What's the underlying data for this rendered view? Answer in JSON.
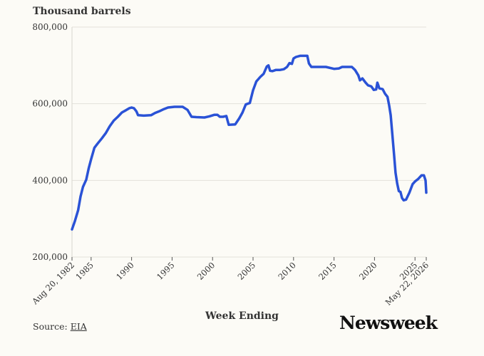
{
  "chart_data": {
    "type": "line",
    "ylabel": "Thousand barrels",
    "xlabel": "Week Ending",
    "xlim": [
      1982.64,
      2026.39
    ],
    "ylim": [
      200000,
      800000
    ],
    "y_ticks": [
      {
        "value": 200000,
        "label": "200,000"
      },
      {
        "value": 400000,
        "label": "400,000"
      },
      {
        "value": 600000,
        "label": "600,000"
      },
      {
        "value": 800000,
        "label": "800,000"
      }
    ],
    "x_ticks": [
      {
        "value": 1982.64,
        "label": "Aug 20, 1982"
      },
      {
        "value": 1985,
        "label": "1985"
      },
      {
        "value": 1990,
        "label": "1990"
      },
      {
        "value": 1995,
        "label": "1995"
      },
      {
        "value": 2000,
        "label": "2000"
      },
      {
        "value": 2005,
        "label": "2005"
      },
      {
        "value": 2010,
        "label": "2010"
      },
      {
        "value": 2015,
        "label": "2015"
      },
      {
        "value": 2020,
        "label": "2020"
      },
      {
        "value": 2025,
        "label": "2025"
      },
      {
        "value": 2026.39,
        "label": "May 22, 2026"
      }
    ],
    "grid": true,
    "color": "#2a52d6",
    "series": [
      {
        "points": [
          [
            1982.64,
            272000
          ],
          [
            1983.0,
            294000
          ],
          [
            1983.4,
            322000
          ],
          [
            1983.7,
            358000
          ],
          [
            1984.0,
            383000
          ],
          [
            1984.4,
            402000
          ],
          [
            1984.7,
            431000
          ],
          [
            1985.0,
            455000
          ],
          [
            1985.4,
            485000
          ],
          [
            1985.8,
            496000
          ],
          [
            1986.3,
            509000
          ],
          [
            1986.8,
            523000
          ],
          [
            1987.3,
            541000
          ],
          [
            1987.8,
            556000
          ],
          [
            1988.3,
            566000
          ],
          [
            1988.8,
            577000
          ],
          [
            1989.3,
            583000
          ],
          [
            1989.7,
            588000
          ],
          [
            1990.0,
            590000
          ],
          [
            1990.3,
            588000
          ],
          [
            1990.6,
            580000
          ],
          [
            1990.8,
            570000
          ],
          [
            1991.5,
            569000
          ],
          [
            1992.4,
            570000
          ],
          [
            1992.9,
            576000
          ],
          [
            1993.4,
            580000
          ],
          [
            1994.0,
            586000
          ],
          [
            1994.5,
            590000
          ],
          [
            1995.3,
            592000
          ],
          [
            1996.3,
            592000
          ],
          [
            1996.9,
            584000
          ],
          [
            1997.4,
            566000
          ],
          [
            1998.0,
            565000
          ],
          [
            1999.0,
            564000
          ],
          [
            1999.6,
            567000
          ],
          [
            2000.2,
            571000
          ],
          [
            2000.6,
            571000
          ],
          [
            2000.9,
            566000
          ],
          [
            2001.3,
            566000
          ],
          [
            2001.7,
            568000
          ],
          [
            2002.0,
            545000
          ],
          [
            2002.8,
            546000
          ],
          [
            2003.3,
            562000
          ],
          [
            2003.7,
            577000
          ],
          [
            2004.1,
            598000
          ],
          [
            2004.6,
            602000
          ],
          [
            2005.0,
            635000
          ],
          [
            2005.4,
            658000
          ],
          [
            2005.9,
            670000
          ],
          [
            2006.3,
            678000
          ],
          [
            2006.7,
            697000
          ],
          [
            2006.9,
            700000
          ],
          [
            2007.1,
            686000
          ],
          [
            2007.4,
            685000
          ],
          [
            2007.8,
            688000
          ],
          [
            2008.3,
            688000
          ],
          [
            2008.8,
            690000
          ],
          [
            2009.2,
            696000
          ],
          [
            2009.5,
            706000
          ],
          [
            2009.8,
            704000
          ],
          [
            2010.0,
            718000
          ],
          [
            2010.3,
            722000
          ],
          [
            2010.8,
            725000
          ],
          [
            2011.7,
            725000
          ],
          [
            2011.9,
            705000
          ],
          [
            2012.2,
            696000
          ],
          [
            2013.0,
            696000
          ],
          [
            2014.0,
            696000
          ],
          [
            2015.0,
            691000
          ],
          [
            2015.6,
            692000
          ],
          [
            2016.0,
            696000
          ],
          [
            2016.5,
            696000
          ],
          [
            2017.2,
            696000
          ],
          [
            2017.6,
            688000
          ],
          [
            2018.0,
            674000
          ],
          [
            2018.2,
            661000
          ],
          [
            2018.5,
            666000
          ],
          [
            2018.9,
            655000
          ],
          [
            2019.2,
            648000
          ],
          [
            2019.6,
            645000
          ],
          [
            2019.9,
            636000
          ],
          [
            2020.2,
            637000
          ],
          [
            2020.35,
            655000
          ],
          [
            2020.6,
            640000
          ],
          [
            2021.0,
            638000
          ],
          [
            2021.3,
            626000
          ],
          [
            2021.6,
            618000
          ],
          [
            2021.8,
            596000
          ],
          [
            2022.0,
            570000
          ],
          [
            2022.2,
            520000
          ],
          [
            2022.4,
            470000
          ],
          [
            2022.6,
            420000
          ],
          [
            2022.8,
            392000
          ],
          [
            2023.0,
            372000
          ],
          [
            2023.2,
            370000
          ],
          [
            2023.4,
            354000
          ],
          [
            2023.6,
            348000
          ],
          [
            2023.9,
            350000
          ],
          [
            2024.3,
            368000
          ],
          [
            2024.7,
            390000
          ],
          [
            2025.0,
            397000
          ],
          [
            2025.4,
            404000
          ],
          [
            2025.8,
            413000
          ],
          [
            2026.1,
            413000
          ],
          [
            2026.3,
            400000
          ],
          [
            2026.39,
            368000
          ]
        ]
      }
    ]
  },
  "footer": {
    "source_prefix": "Source: ",
    "source_link": "EIA",
    "brand": "Newsweek"
  }
}
